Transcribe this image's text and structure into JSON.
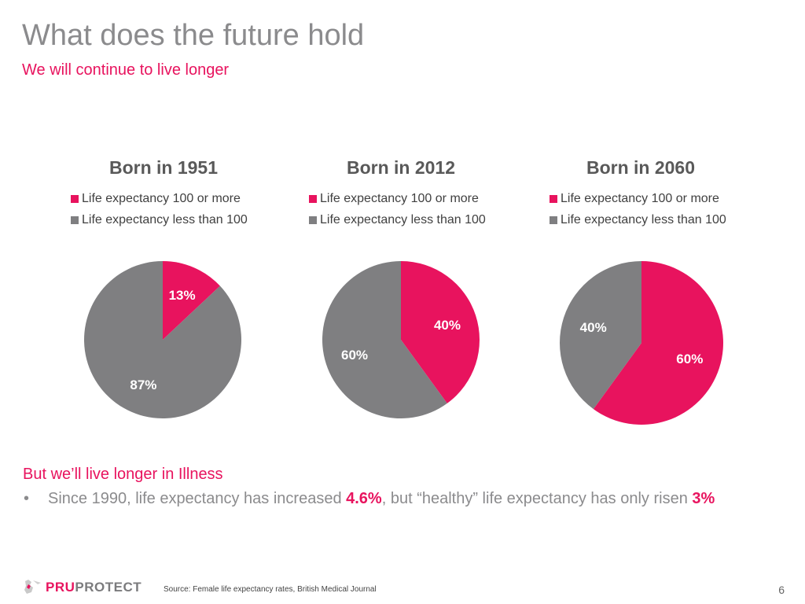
{
  "header": {
    "title": "What does the future hold",
    "subtitle": "We will continue to live longer"
  },
  "colors": {
    "accent": "#e8135e",
    "grey": "#7f7f81"
  },
  "chart_data": [
    {
      "type": "pie",
      "title": "Born in 1951",
      "legend": [
        "Life expectancy 100 or more",
        "Life expectancy less than 100"
      ],
      "legend_position": "top",
      "slices": [
        {
          "name": "Life expectancy 100 or more",
          "value": 13,
          "label": "13%",
          "color": "#e8135e"
        },
        {
          "name": "Life expectancy less than 100",
          "value": 87,
          "label": "87%",
          "color": "#7f7f81"
        }
      ]
    },
    {
      "type": "pie",
      "title": "Born in 2012",
      "legend": [
        "Life expectancy 100 or more",
        "Life expectancy less than 100"
      ],
      "legend_position": "top",
      "slices": [
        {
          "name": "Life expectancy 100 or more",
          "value": 40,
          "label": "40%",
          "color": "#e8135e"
        },
        {
          "name": "Life expectancy less than 100",
          "value": 60,
          "label": "60%",
          "color": "#7f7f81"
        }
      ]
    },
    {
      "type": "pie",
      "title": "Born in 2060",
      "legend": [
        "Life expectancy 100 or more",
        "Life expectancy less than 100"
      ],
      "legend_position": "top",
      "slices": [
        {
          "name": "Life expectancy 100 or more",
          "value": 60,
          "label": "60%",
          "color": "#e8135e"
        },
        {
          "name": "Life expectancy less than 100",
          "value": 40,
          "label": "40%",
          "color": "#7f7f81"
        }
      ]
    }
  ],
  "body": {
    "heading": "But we’ll live longer in Illness",
    "bullet_marker": "•",
    "bullet_pre": "Since 1990, life expectancy has increased ",
    "bullet_val1": "4.6%",
    "bullet_mid": ", but “healthy” life expectancy has only risen ",
    "bullet_val2": "3%"
  },
  "footer": {
    "logo_pru": "PRU",
    "logo_protect": "PROTECT",
    "source": "Source:  Female life expectancy rates, British Medical Journal",
    "page_number": "6"
  }
}
